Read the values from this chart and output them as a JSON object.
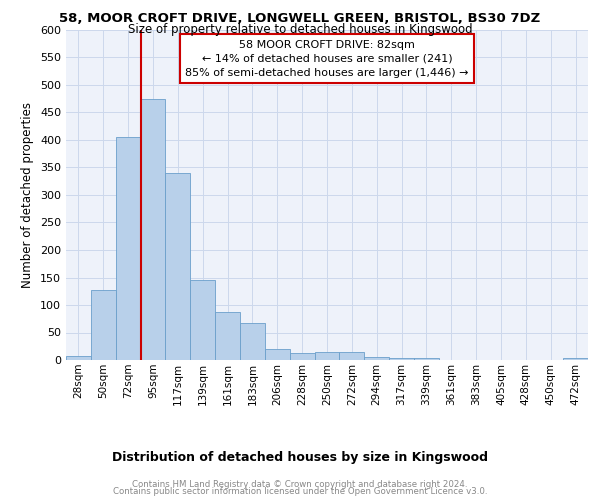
{
  "title1": "58, MOOR CROFT DRIVE, LONGWELL GREEN, BRISTOL, BS30 7DZ",
  "title2": "Size of property relative to detached houses in Kingswood",
  "xlabel": "Distribution of detached houses by size in Kingswood",
  "ylabel": "Number of detached properties",
  "categories": [
    "28sqm",
    "50sqm",
    "72sqm",
    "95sqm",
    "117sqm",
    "139sqm",
    "161sqm",
    "183sqm",
    "206sqm",
    "228sqm",
    "250sqm",
    "272sqm",
    "294sqm",
    "317sqm",
    "339sqm",
    "361sqm",
    "383sqm",
    "405sqm",
    "428sqm",
    "450sqm",
    "472sqm"
  ],
  "values": [
    7,
    128,
    405,
    475,
    340,
    145,
    87,
    68,
    20,
    12,
    15,
    15,
    6,
    4,
    3,
    0,
    0,
    0,
    0,
    0,
    3
  ],
  "bar_color": "#b8d0ea",
  "bar_edge_color": "#6a9fcb",
  "marker_label1": "58 MOOR CROFT DRIVE: 82sqm",
  "marker_label2": "← 14% of detached houses are smaller (241)",
  "marker_label3": "85% of semi-detached houses are larger (1,446) →",
  "marker_line_color": "#cc0000",
  "annotation_box_color": "#cc0000",
  "grid_color": "#ccd8ec",
  "background_color": "#eef2fa",
  "ylim": [
    0,
    600
  ],
  "yticks": [
    0,
    50,
    100,
    150,
    200,
    250,
    300,
    350,
    400,
    450,
    500,
    550,
    600
  ],
  "footer1": "Contains HM Land Registry data © Crown copyright and database right 2024.",
  "footer2": "Contains public sector information licensed under the Open Government Licence v3.0."
}
